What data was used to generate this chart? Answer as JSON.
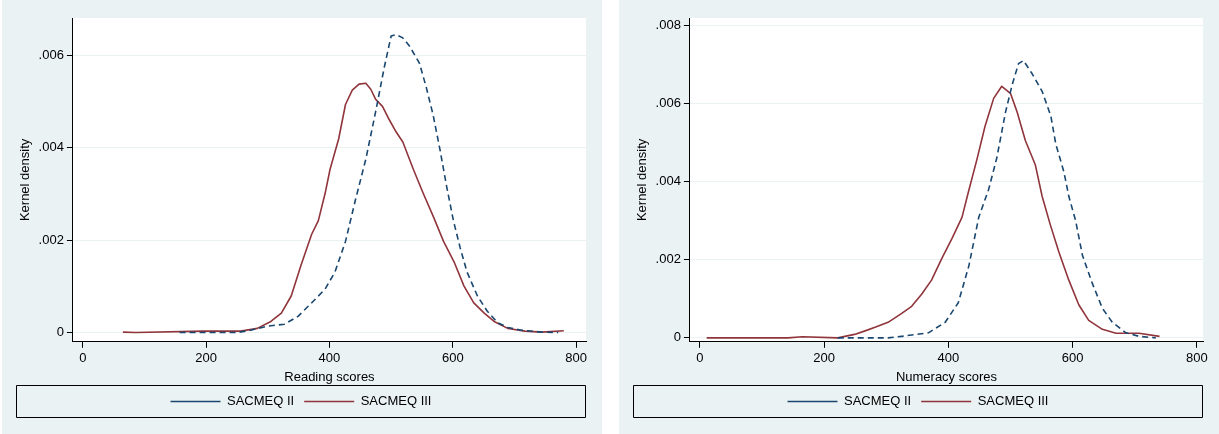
{
  "chart_data": [
    {
      "type": "line",
      "xlabel": "Reading scores",
      "ylabel": "Kernel density",
      "xlim": [
        -16,
        816
      ],
      "ylim": [
        -0.0002,
        0.0068
      ],
      "xticks": [
        0,
        200,
        400,
        600,
        800
      ],
      "yticks": [
        0,
        {
          "value": 0.002,
          "label": ".002"
        },
        {
          "value": 0.004,
          "label": ".004"
        },
        {
          "value": 0.006,
          "label": ".006"
        }
      ],
      "grid": "y",
      "legend": "bottom",
      "marker": "none",
      "series": [
        {
          "name": "SACMEQ II",
          "color": "#1a476f",
          "line_style": "dashed",
          "x": [
            157,
            250,
            272,
            300,
            327,
            349,
            371,
            393,
            409,
            426,
            442,
            459,
            475,
            489,
            500,
            508,
            519,
            530,
            546,
            557,
            568,
            579,
            590,
            601,
            612,
            623,
            640,
            656,
            673,
            689,
            711,
            744,
            771
          ],
          "values": [
            0,
            0,
            5e-05,
            0.00014,
            0.00018,
            0.00035,
            0.00064,
            0.00094,
            0.00131,
            0.00197,
            0.00286,
            0.00375,
            0.00478,
            0.00574,
            0.00641,
            0.00644,
            0.00637,
            0.00619,
            0.00582,
            0.0053,
            0.00471,
            0.00397,
            0.00316,
            0.00242,
            0.00183,
            0.00131,
            0.00079,
            0.00046,
            0.00021,
            0.00011,
            5e-05,
            1e-05,
            0
          ]
        },
        {
          "name": "SACMEQ III",
          "color": "#90353b",
          "line_style": "solid",
          "x": [
            65,
            86,
            195,
            256,
            283,
            305,
            322,
            338,
            354,
            371,
            382,
            393,
            401,
            415,
            426,
            437,
            448,
            459,
            467,
            475,
            486,
            497,
            508,
            519,
            536,
            552,
            569,
            585,
            602,
            618,
            634,
            651,
            667,
            689,
            717,
            744,
            780
          ],
          "values": [
            1e-05,
            0,
            3e-05,
            3e-05,
            9e-05,
            0.00024,
            0.00042,
            0.00079,
            0.00146,
            0.00212,
            0.00242,
            0.00301,
            0.00353,
            0.00419,
            0.00493,
            0.00524,
            0.00537,
            0.00539,
            0.00526,
            0.00504,
            0.00489,
            0.0046,
            0.00434,
            0.00412,
            0.00353,
            0.00301,
            0.00249,
            0.00197,
            0.00153,
            0.00101,
            0.00064,
            0.00042,
            0.00024,
            9e-05,
            3e-05,
            1e-05,
            4e-05
          ]
        }
      ]
    },
    {
      "type": "line",
      "xlabel": "Numeracy scores",
      "ylabel": "Kernel density",
      "xlim": [
        -16,
        810
      ],
      "ylim": [
        -0.0001,
        0.0082
      ],
      "xticks": [
        0,
        200,
        400,
        600,
        800
      ],
      "yticks": [
        0,
        {
          "value": 0.002,
          "label": ".002"
        },
        {
          "value": 0.004,
          "label": ".004"
        },
        {
          "value": 0.006,
          "label": ".006"
        },
        {
          "value": 0.008,
          "label": ".008"
        }
      ],
      "grid": "y",
      "legend": "bottom",
      "marker": "none",
      "series": [
        {
          "name": "SACMEQ II",
          "color": "#1a476f",
          "line_style": "dashed",
          "x": [
            222,
            303,
            325,
            368,
            395,
            416,
            433,
            449,
            465,
            478,
            492,
            503,
            513,
            521,
            535,
            551,
            565,
            573,
            586,
            594,
            605,
            616,
            632,
            648,
            664,
            686,
            707,
            734
          ],
          "values": [
            0,
            0,
            4e-05,
            0.00013,
            0.0004,
            0.0009,
            0.00184,
            0.00309,
            0.00381,
            0.00461,
            0.00578,
            0.0065,
            0.00703,
            0.00711,
            0.00677,
            0.00632,
            0.00569,
            0.00497,
            0.00426,
            0.00363,
            0.003,
            0.00211,
            0.00139,
            0.00076,
            0.0004,
            0.00013,
            4e-05,
            0
          ]
        },
        {
          "name": "SACMEQ III",
          "color": "#90353b",
          "line_style": "solid",
          "x": [
            11,
            142,
            165,
            222,
            249,
            266,
            282,
            303,
            325,
            341,
            357,
            373,
            389,
            406,
            422,
            432,
            446,
            459,
            473,
            486,
            500,
            511,
            524,
            540,
            551,
            564,
            578,
            594,
            610,
            626,
            648,
            670,
            707,
            740
          ],
          "values": [
            0,
            0,
            3e-05,
            0,
            9e-05,
            0.00018,
            0.00027,
            0.0004,
            0.00063,
            0.00081,
            0.00112,
            0.00148,
            0.00202,
            0.00255,
            0.00309,
            0.00372,
            0.00457,
            0.00542,
            0.00614,
            0.00645,
            0.00627,
            0.00578,
            0.00506,
            0.00444,
            0.00363,
            0.00291,
            0.0022,
            0.00148,
            0.00085,
            0.00045,
            0.00022,
            0.00012,
            0.00012,
            4e-05
          ]
        }
      ]
    }
  ]
}
